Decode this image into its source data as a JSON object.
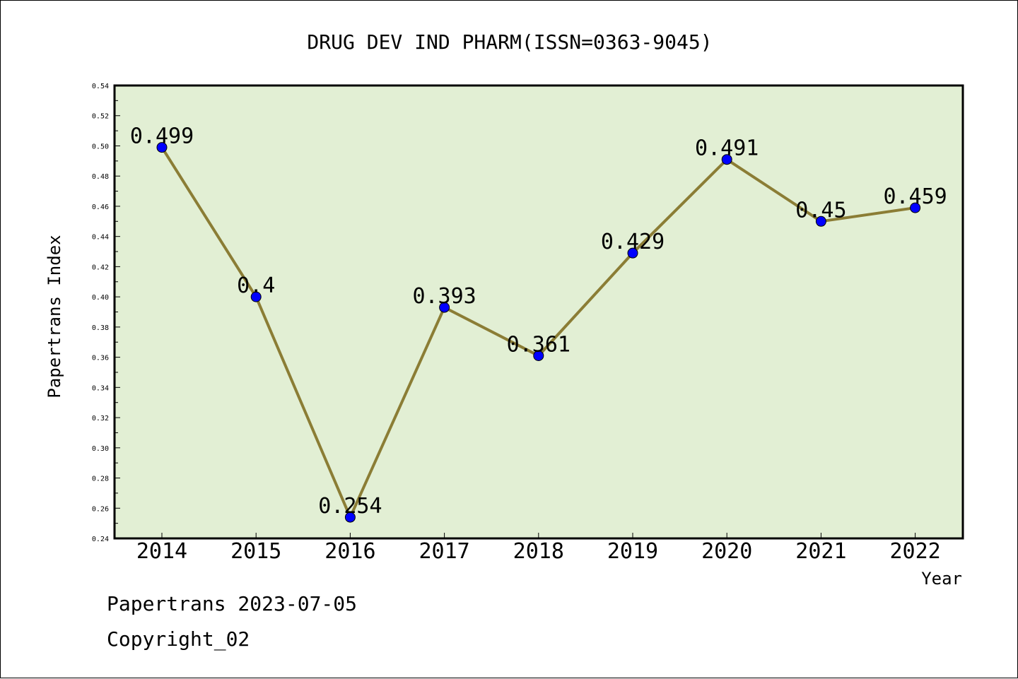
{
  "chart_data": {
    "type": "line",
    "title": "DRUG DEV IND PHARM(ISSN=0363-9045)",
    "xlabel": "Year",
    "ylabel": "Papertrans Index",
    "categories": [
      "2014",
      "2015",
      "2016",
      "2017",
      "2018",
      "2019",
      "2020",
      "2021",
      "2022"
    ],
    "series": [
      {
        "values": [
          0.499,
          0.4,
          0.254,
          0.393,
          0.361,
          0.429,
          0.491,
          0.45,
          0.459
        ],
        "labels": [
          "0.499",
          "0.4",
          "0.254",
          "0.393",
          "0.361",
          "0.429",
          "0.491",
          "0.45",
          "0.459"
        ]
      }
    ],
    "ylim": [
      0.24,
      0.54
    ],
    "yticks": [
      "0.24",
      "0.26",
      "0.28",
      "0.30",
      "0.32",
      "0.34",
      "0.36",
      "0.38",
      "0.40",
      "0.42",
      "0.44",
      "0.46",
      "0.48",
      "0.50",
      "0.52",
      "0.54"
    ],
    "grid": false,
    "colors": {
      "plot_background": "#e2efd4",
      "line": "#8b7d35",
      "marker": "#0000ff"
    }
  },
  "footer": {
    "line1": "Papertrans 2023-07-05",
    "line2": "Copyright_02"
  }
}
